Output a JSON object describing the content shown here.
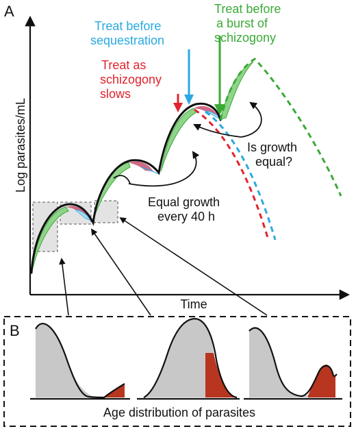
{
  "panel_a": {
    "letter": "A",
    "y_axis_label": "Log parasites/mL",
    "x_axis_label": "Time",
    "labels": {
      "green_1": "Treat before",
      "green_2": "a burst of",
      "green_3": "schizogony",
      "blue_1": "Treat before",
      "blue_2": "sequestration",
      "red_1": "Treat as",
      "red_2": "schizogony",
      "red_3": "slows",
      "question_1": "Is growth",
      "question_2": "equal?",
      "equal_1": "Equal growth",
      "equal_2": "every 40 h"
    }
  },
  "panel_b": {
    "letter": "B",
    "caption": "Age distribution of parasites"
  },
  "colors": {
    "green": "#3aaa35",
    "green_fill": "#8fd48a",
    "blue": "#29a9e0",
    "blue_fill": "#a9ddf3",
    "red": "#e0232d",
    "red_fill": "#c8506e",
    "dark_red": "#b8361f",
    "gray": "#c8c8c8",
    "box_gray": "#e3e3e3"
  }
}
